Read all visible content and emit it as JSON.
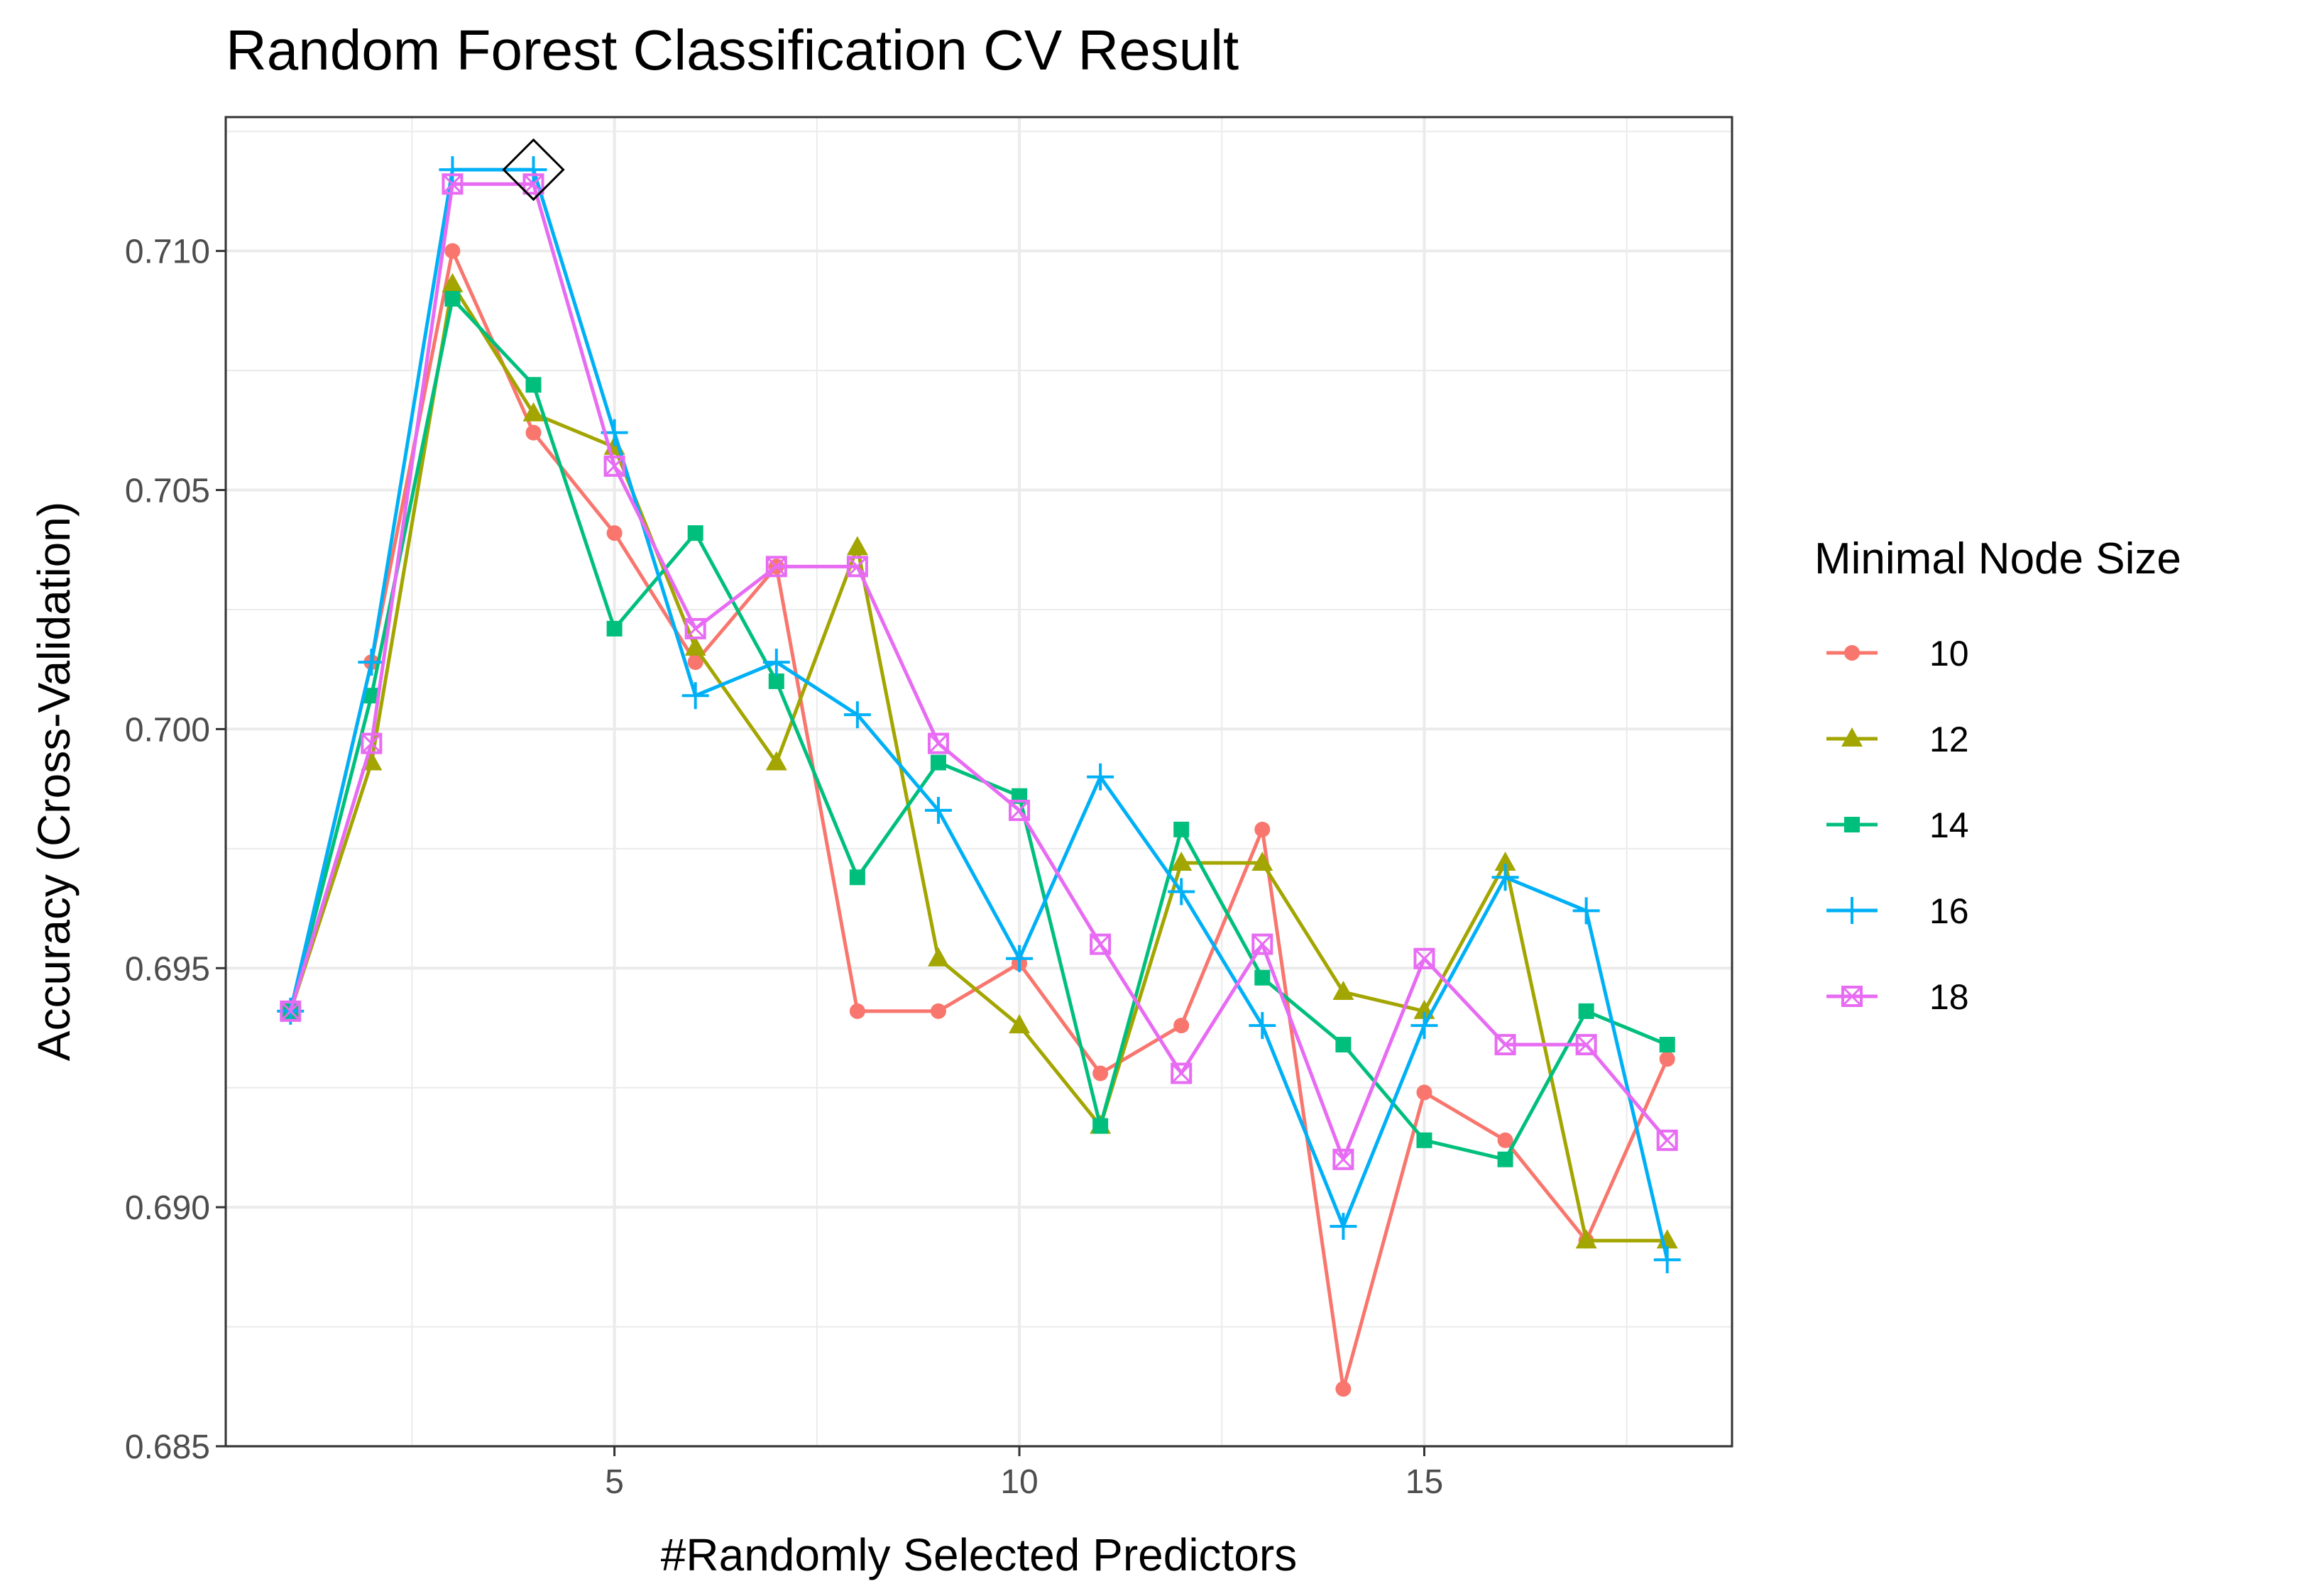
{
  "chart_data": {
    "type": "line",
    "title": "Random Forest Classification CV Result",
    "xlabel": "#Randomly Selected Predictors",
    "ylabel": "Accuracy (Cross-Validation)",
    "xlim": [
      0.2,
      18.8
    ],
    "ylim": [
      0.685,
      0.7128
    ],
    "xticks": [
      5,
      10,
      15
    ],
    "xtick_labels": [
      "5",
      "10",
      "15"
    ],
    "yticks": [
      0.685,
      0.69,
      0.695,
      0.7,
      0.705,
      0.71
    ],
    "ytick_labels": [
      "0.685",
      "0.690",
      "0.695",
      "0.700",
      "0.705",
      "0.710"
    ],
    "grid": true,
    "legend": {
      "title": "Minimal Node Size",
      "position": "right"
    },
    "x": [
      1,
      2,
      3,
      4,
      5,
      6,
      7,
      8,
      9,
      10,
      11,
      12,
      13,
      14,
      15,
      16,
      17,
      18
    ],
    "series": [
      {
        "name": "10",
        "color": "#F8766D",
        "marker": "circle",
        "values": [
          0.6941,
          0.7014,
          0.71,
          0.7062,
          0.7041,
          0.7014,
          0.7034,
          0.6941,
          0.6941,
          0.6951,
          0.6928,
          0.6938,
          0.6979,
          0.6862,
          0.6924,
          0.6914,
          0.6893,
          0.6931
        ]
      },
      {
        "name": "12",
        "color": "#A3A500",
        "marker": "triangle",
        "values": [
          0.6941,
          0.6993,
          0.7093,
          0.7066,
          0.7059,
          0.7017,
          0.6993,
          0.7038,
          0.6952,
          0.6938,
          0.6917,
          0.6972,
          0.6972,
          0.6945,
          0.6941,
          0.6972,
          0.6893,
          0.6893
        ]
      },
      {
        "name": "14",
        "color": "#00BF7D",
        "marker": "square",
        "values": [
          0.6941,
          0.7007,
          0.709,
          0.7072,
          0.7021,
          0.7041,
          0.701,
          0.6969,
          0.6993,
          0.6986,
          0.6917,
          0.6979,
          0.6948,
          0.6934,
          0.6914,
          0.691,
          0.6941,
          0.6934
        ]
      },
      {
        "name": "16",
        "color": "#00B0F6",
        "marker": "plus",
        "values": [
          0.6941,
          0.7014,
          0.7117,
          0.7117,
          0.7062,
          0.7007,
          0.7014,
          0.7003,
          0.6983,
          0.6952,
          0.699,
          0.6966,
          0.6938,
          0.6896,
          0.6938,
          0.6969,
          0.6962,
          0.6889
        ]
      },
      {
        "name": "18",
        "color": "#E76BF3",
        "marker": "square-x",
        "values": [
          0.6941,
          0.6997,
          0.7114,
          0.7114,
          0.7055,
          0.7021,
          0.7034,
          0.7034,
          0.6997,
          0.6983,
          0.6955,
          0.6928,
          0.6955,
          0.691,
          0.6952,
          0.6934,
          0.6934,
          0.6914
        ]
      }
    ],
    "annotations": [
      {
        "type": "best-point-marker",
        "shape": "diamond",
        "x": 4,
        "y": 0.7117,
        "color": "#000000"
      }
    ]
  }
}
